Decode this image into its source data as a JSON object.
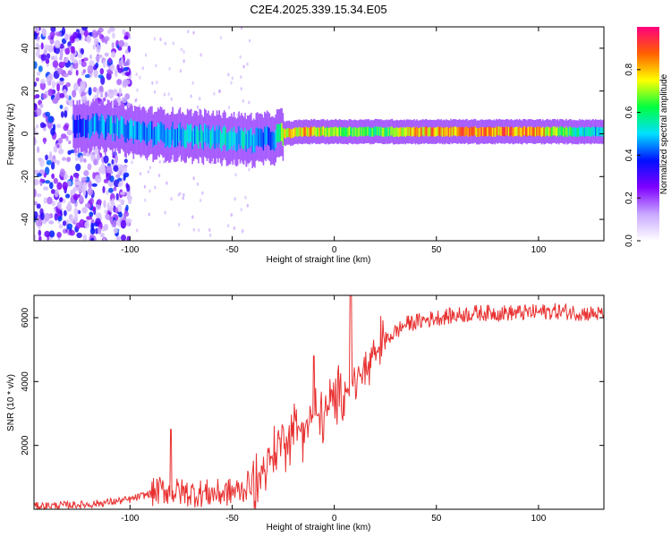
{
  "figure_title": "C2E4.2025.339.15.34.E05",
  "colors": {
    "snr_line": "#e83030",
    "frame": "#000000",
    "background": "#ffffff",
    "colormap": [
      "#ffffff",
      "#c8a8ff",
      "#8000ff",
      "#0010ff",
      "#00e0ff",
      "#00ff40",
      "#ffff00",
      "#ff6000",
      "#ff0080"
    ]
  },
  "chart_data": [
    {
      "type": "heatmap",
      "name": "spectrogram",
      "xlabel": "Height of straight line (km)",
      "ylabel": "Frequency (Hz)",
      "xlim": [
        -147,
        132
      ],
      "ylim": [
        -50,
        50
      ],
      "xticks": [
        -100,
        -50,
        0,
        50,
        100
      ],
      "yticks": [
        -40,
        -20,
        0,
        20,
        40
      ],
      "xtick_labels": [
        "-100",
        "-50",
        "0",
        "50",
        "100"
      ],
      "ytick_labels": [
        "-40",
        "-20",
        "0",
        "20",
        "40"
      ],
      "colorbar": {
        "label": "Normalized spectral amplitude",
        "range": [
          0,
          1
        ],
        "ticks": [
          0.0,
          0.2,
          0.4,
          0.6,
          0.8
        ],
        "tick_labels": [
          "0.0",
          "0.2",
          "0.4",
          "0.6",
          "0.8"
        ]
      },
      "ridge": {
        "description_points_x": [
          -125,
          -110,
          -90,
          -70,
          -55,
          -40,
          -30,
          -25,
          -15,
          0,
          20,
          40,
          60,
          80,
          100,
          120,
          132
        ],
        "center_freq_hz": [
          4,
          3,
          0,
          -1,
          -2,
          -3,
          -2,
          0,
          1,
          1,
          1,
          1,
          1,
          1,
          1,
          1,
          1
        ],
        "amplitude": [
          0.45,
          0.55,
          0.5,
          0.55,
          0.6,
          0.55,
          0.45,
          0.9,
          0.9,
          0.8,
          0.7,
          0.9,
          0.95,
          0.95,
          0.95,
          0.6,
          0.55
        ]
      },
      "noise_region_x": [
        -147,
        -110
      ]
    },
    {
      "type": "line",
      "name": "snr",
      "xlabel": "Height of straight line (km)",
      "ylabel": "SNR (10 * v/v)",
      "xlim": [
        -147,
        132
      ],
      "ylim": [
        0,
        6700
      ],
      "xticks": [
        -100,
        -50,
        0,
        50,
        100
      ],
      "yticks": [
        2000,
        4000,
        6000
      ],
      "xtick_labels": [
        "-100",
        "-50",
        "0",
        "50",
        "100"
      ],
      "ytick_labels": [
        "2000",
        "4000",
        "6000"
      ],
      "trend_x": [
        -147,
        -120,
        -100,
        -85,
        -70,
        -55,
        -45,
        -35,
        -25,
        -15,
        -5,
        5,
        15,
        25,
        35,
        50,
        70,
        90,
        110,
        132
      ],
      "trend_y": [
        100,
        150,
        300,
        600,
        500,
        500,
        600,
        1200,
        2200,
        2700,
        3000,
        3700,
        4300,
        5300,
        5800,
        6000,
        6150,
        6150,
        6200,
        6100
      ],
      "spikes": [
        {
          "x": -80,
          "y": 2500
        },
        {
          "x": 8,
          "y": 6700
        },
        {
          "x": -10,
          "y": 4800
        }
      ]
    }
  ]
}
